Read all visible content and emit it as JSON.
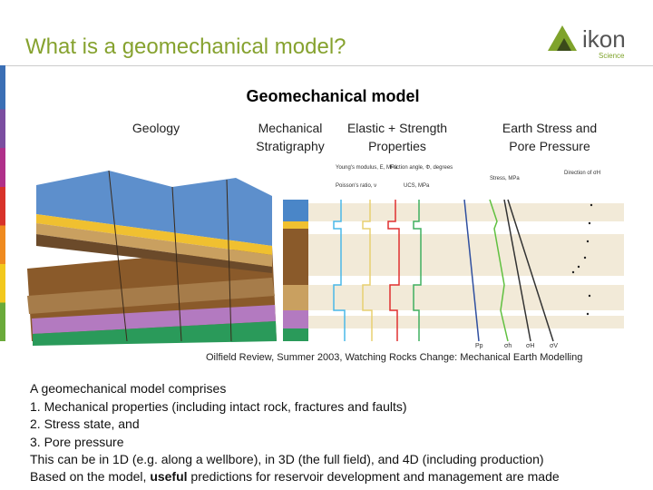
{
  "header": {
    "title": "What is a geomechanical model?",
    "logo": "ikon",
    "logo_sub": "Science"
  },
  "figure": {
    "heading": "Geomechanical model",
    "columns": [
      {
        "line1": "Geology",
        "line2": null
      },
      {
        "line1": "Mechanical",
        "line2": "Stratigraphy"
      },
      {
        "line1": "Elastic + Strength",
        "line2": "Properties"
      },
      {
        "line1": "Earth Stress and",
        "line2": "Pore Pressure"
      }
    ],
    "track_labels": [
      "Young's modulus, E, MPa",
      "Friction angle, Φ, degrees",
      "Poisson's ratio, ν",
      "UCS, MPa",
      "Stress, MPa",
      "Direction of σH"
    ],
    "bottom_labels": [
      "Pp",
      "σh",
      "σH",
      "σV"
    ],
    "caption": "Oilfield Review, Summer 2003, Watching Rocks Change: Mechanical Earth Modelling"
  },
  "body": {
    "intro": "A geomechanical model comprises",
    "items": [
      "1.  Mechanical properties (including intact rock, fractures and faults)",
      "2.  Stress state, and",
      "3.  Pore pressure"
    ],
    "note": "This can be in 1D (e.g. along a wellbore), in 3D (the full field), and 4D (including production)",
    "last": {
      "before": "Based on the model, ",
      "bold": "useful",
      "after": " predictions for reservoir development and management are made"
    }
  }
}
